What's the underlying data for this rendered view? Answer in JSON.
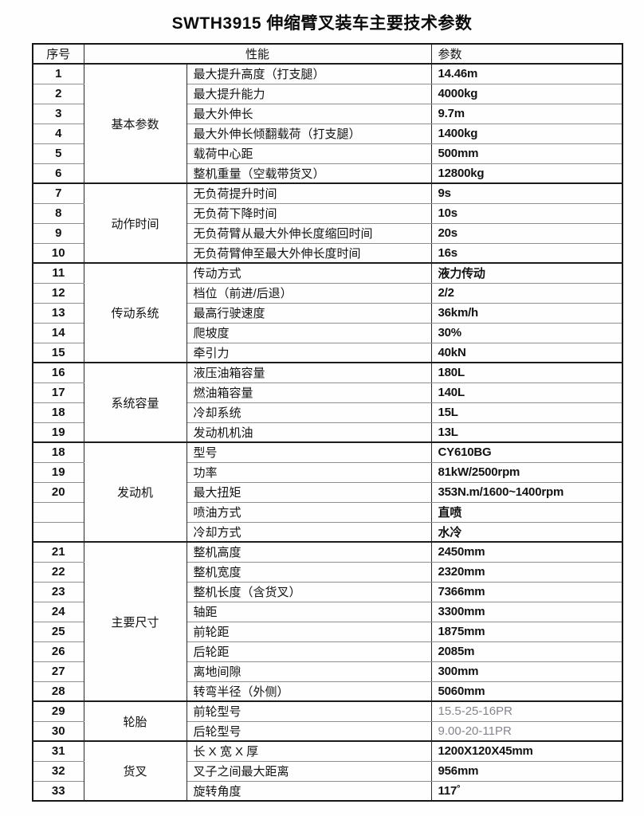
{
  "page": {
    "title": "SWTH3915 伸缩臂叉装车主要技术参数"
  },
  "table": {
    "headers": {
      "index": "序号",
      "performance": "性能",
      "parameter": "参数"
    },
    "groups": [
      {
        "category": "基本参数",
        "rows": [
          {
            "no": "1",
            "property": "最大提升高度（打支腿）",
            "value": "14.46m"
          },
          {
            "no": "2",
            "property": "最大提升能力",
            "value": "4000kg"
          },
          {
            "no": "3",
            "property": "最大外伸长",
            "value": "9.7m"
          },
          {
            "no": "4",
            "property": "最大外伸长倾翻载荷（打支腿）",
            "value": "1400kg"
          },
          {
            "no": "5",
            "property": "载荷中心距",
            "value": "500mm"
          },
          {
            "no": "6",
            "property": "整机重量（空载带货叉）",
            "value": "12800kg"
          }
        ]
      },
      {
        "category": "动作时间",
        "rows": [
          {
            "no": "7",
            "property": "无负荷提升时间",
            "value": "9s"
          },
          {
            "no": "8",
            "property": "无负荷下降时间",
            "value": "10s"
          },
          {
            "no": "9",
            "property": "无负荷臂从最大外伸长度缩回时间",
            "value": "20s"
          },
          {
            "no": "10",
            "property": "无负荷臂伸至最大外伸长度时间",
            "value": "16s"
          }
        ]
      },
      {
        "category": "传动系统",
        "rows": [
          {
            "no": "11",
            "property": "传动方式",
            "value": "液力传动"
          },
          {
            "no": "12",
            "property": "档位（前进/后退）",
            "value": "2/2"
          },
          {
            "no": "13",
            "property": "最高行驶速度",
            "value": "36km/h"
          },
          {
            "no": "14",
            "property": "爬坡度",
            "value": "30%"
          },
          {
            "no": "15",
            "property": "牵引力",
            "value": "40kN"
          }
        ]
      },
      {
        "category": "系统容量",
        "rows": [
          {
            "no": "16",
            "property": "液压油箱容量",
            "value": "180L"
          },
          {
            "no": "17",
            "property": "燃油箱容量",
            "value": "140L"
          },
          {
            "no": "18",
            "property": "冷却系统",
            "value": "15L"
          },
          {
            "no": "19",
            "property": "发动机机油",
            "value": "13L"
          }
        ]
      },
      {
        "category": "发动机",
        "rows": [
          {
            "no": "18",
            "property": "型号",
            "value": "CY610BG"
          },
          {
            "no": "19",
            "property": "功率",
            "value": "81kW/2500rpm"
          },
          {
            "no": "20",
            "property": "最大扭矩",
            "value": "353N.m/1600~1400rpm"
          },
          {
            "no": "",
            "property": "喷油方式",
            "value": "直喷"
          },
          {
            "no": "",
            "property": "冷却方式",
            "value": "水冷"
          }
        ]
      },
      {
        "category": "主要尺寸",
        "rows": [
          {
            "no": "21",
            "property": "整机高度",
            "value": "2450mm"
          },
          {
            "no": "22",
            "property": "整机宽度",
            "value": "2320mm"
          },
          {
            "no": "23",
            "property": "整机长度（含货叉）",
            "value": "7366mm"
          },
          {
            "no": "24",
            "property": "轴距",
            "value": "3300mm"
          },
          {
            "no": "25",
            "property": "前轮距",
            "value": "1875mm"
          },
          {
            "no": "26",
            "property": "后轮距",
            "value": "2085m"
          },
          {
            "no": "27",
            "property": "离地间隙",
            "value": "300mm"
          },
          {
            "no": "28",
            "property": "转弯半径（外侧）",
            "value": "5060mm"
          }
        ]
      },
      {
        "category": "轮胎",
        "rows": [
          {
            "no": "29",
            "property": "前轮型号",
            "value": "15.5-25-16PR",
            "muted": true
          },
          {
            "no": "30",
            "property": "后轮型号",
            "value": "9.00-20-11PR",
            "muted": true
          }
        ]
      },
      {
        "category": "货叉",
        "rows": [
          {
            "no": "31",
            "property": "长 X 宽 X 厚",
            "value": "1200X120X45mm"
          },
          {
            "no": "32",
            "property": "叉子之间最大距离",
            "value": "956mm"
          },
          {
            "no": "33",
            "property": "旋转角度",
            "value": "117˚"
          }
        ]
      }
    ]
  }
}
